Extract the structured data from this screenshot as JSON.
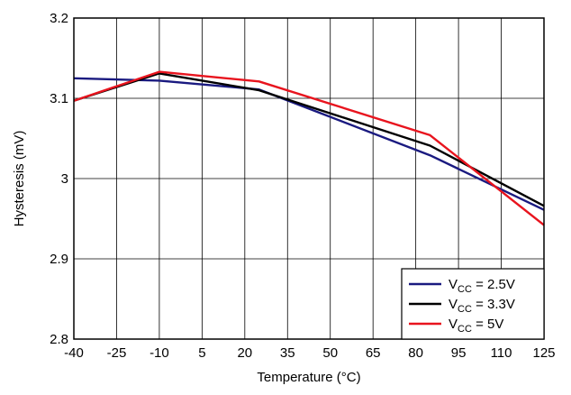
{
  "chart_data": {
    "type": "line",
    "xlabel": "Temperature (°C)",
    "ylabel": "Hysteresis (mV)",
    "xlim": [
      -40,
      125
    ],
    "ylim": [
      2.8,
      3.2
    ],
    "x_ticks": [
      -40,
      -25,
      -10,
      5,
      20,
      35,
      50,
      65,
      80,
      95,
      110,
      125
    ],
    "x_tick_labels": [
      "-40",
      "-25",
      "-10",
      "5",
      "20",
      "35",
      "50",
      "65",
      "80",
      "95",
      "110",
      "125"
    ],
    "y_ticks": [
      2.8,
      2.9,
      3.0,
      3.1,
      3.2
    ],
    "y_tick_labels": [
      "2.8",
      "2.9",
      "3",
      "3.1",
      "3.2"
    ],
    "grid": true,
    "legend_position": "bottom-right",
    "series": [
      {
        "name_base": "V",
        "name_sub": "CC",
        "name_rest": " = 2.5V",
        "color": "#1a1a80",
        "x": [
          -40,
          -10,
          25,
          85,
          125
        ],
        "y": [
          3.125,
          3.122,
          3.111,
          3.029,
          2.961
        ]
      },
      {
        "name_base": "V",
        "name_sub": "CC",
        "name_rest": " = 3.3V",
        "color": "#000000",
        "x": [
          -40,
          -10,
          25,
          85,
          125
        ],
        "y": [
          3.097,
          3.131,
          3.11,
          3.041,
          2.966
        ]
      },
      {
        "name_base": "V",
        "name_sub": "CC",
        "name_rest": " = 5V",
        "color": "#e8141e",
        "x": [
          -40,
          -10,
          25,
          85,
          125
        ],
        "y": [
          3.097,
          3.133,
          3.121,
          3.054,
          2.942
        ]
      }
    ]
  }
}
